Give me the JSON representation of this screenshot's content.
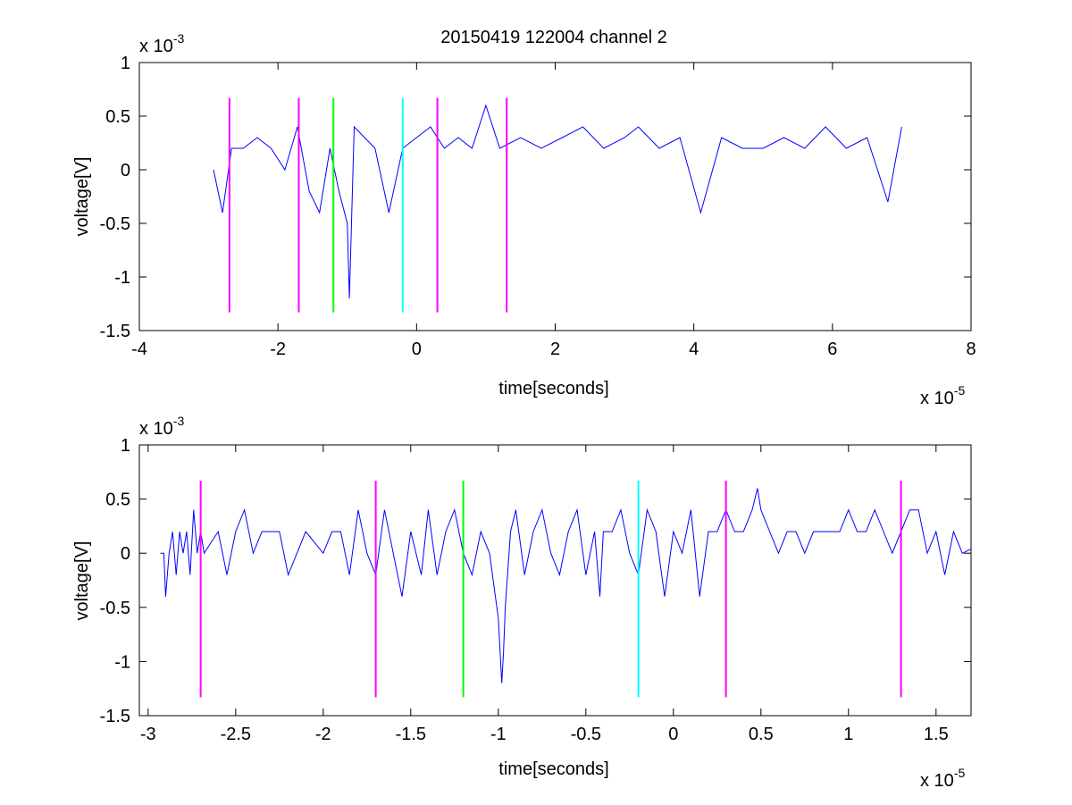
{
  "figure_title": "20150419 122004 channel 2",
  "chart_data": [
    {
      "type": "line",
      "title": "20150419 122004 channel 2",
      "xlabel": "time[seconds]",
      "ylabel": "voltage[V]",
      "x_exponent_label": "x 10",
      "x_exponent_power": "-5",
      "y_exponent_label": "x 10",
      "y_exponent_power": "-3",
      "xlim": [
        -4,
        8
      ],
      "ylim": [
        -1.5,
        1
      ],
      "x_ticks": [
        -4,
        -2,
        0,
        2,
        4,
        6,
        8
      ],
      "x_tick_labels": [
        "-4",
        "-2",
        "0",
        "2",
        "4",
        "6",
        "8"
      ],
      "y_ticks": [
        -1.5,
        -1,
        -0.5,
        0,
        0.5,
        1
      ],
      "y_tick_labels": [
        "-1.5",
        "-1",
        "-0.5",
        "0",
        "0.5",
        "1"
      ],
      "grid": false,
      "series": [
        {
          "color": "#0000ff",
          "x_start": -2.93,
          "x_end": 7.0,
          "x": [
            -2.93,
            -2.8,
            -2.67,
            -2.5,
            -2.3,
            -2.1,
            -1.9,
            -1.72,
            -1.55,
            -1.4,
            -1.25,
            -1.12,
            -1.0,
            -0.97,
            -0.9,
            -0.75,
            -0.6,
            -0.4,
            -0.2,
            0.0,
            0.2,
            0.4,
            0.6,
            0.8,
            1.0,
            1.2,
            1.5,
            1.8,
            2.1,
            2.4,
            2.7,
            3.0,
            3.2,
            3.5,
            3.8,
            4.1,
            4.4,
            4.7,
            5.0,
            5.3,
            5.6,
            5.9,
            6.2,
            6.5,
            6.8,
            7.0
          ],
          "y": [
            0,
            -0.4,
            0.2,
            0.2,
            0.3,
            0.2,
            0,
            0.4,
            -0.2,
            -0.4,
            0.2,
            -0.2,
            -0.5,
            -1.2,
            0.4,
            0.3,
            0.2,
            -0.4,
            0.2,
            0.3,
            0.4,
            0.2,
            0.3,
            0.2,
            0.6,
            0.2,
            0.3,
            0.2,
            0.3,
            0.4,
            0.2,
            0.3,
            0.4,
            0.2,
            0.3,
            -0.4,
            0.3,
            0.2,
            0.2,
            0.3,
            0.2,
            0.4,
            0.2,
            0.3,
            -0.3,
            0.4
          ]
        }
      ],
      "markers": [
        {
          "x": -2.7,
          "color": "#ff00ff"
        },
        {
          "x": -1.7,
          "color": "#ff00ff"
        },
        {
          "x": -1.2,
          "color": "#00ff00"
        },
        {
          "x": -0.2,
          "color": "#00ffff"
        },
        {
          "x": 0.3,
          "color": "#ff00ff"
        },
        {
          "x": 1.3,
          "color": "#ff00ff"
        }
      ],
      "marker_y_range": [
        -1.33,
        0.67
      ]
    },
    {
      "type": "line",
      "xlabel": "time[seconds]",
      "ylabel": "voltage[V]",
      "x_exponent_label": "x 10",
      "x_exponent_power": "-5",
      "y_exponent_label": "x 10",
      "y_exponent_power": "-3",
      "xlim": [
        -3.05,
        1.7
      ],
      "ylim": [
        -1.5,
        1
      ],
      "x_ticks": [
        -3,
        -2.5,
        -2,
        -1.5,
        -1,
        -0.5,
        0,
        0.5,
        1,
        1.5
      ],
      "x_tick_labels": [
        "-3",
        "-2.5",
        "-2",
        "-1.5",
        "-1",
        "-0.5",
        "0",
        "0.5",
        "1",
        "1.5"
      ],
      "y_ticks": [
        -1.5,
        -1,
        -0.5,
        0,
        0.5,
        1
      ],
      "y_tick_labels": [
        "-1.5",
        "-1",
        "-0.5",
        "0",
        "0.5",
        "1"
      ],
      "grid": false,
      "series": [
        {
          "color": "#0000ff",
          "x": [
            -2.93,
            -2.91,
            -2.9,
            -2.88,
            -2.86,
            -2.84,
            -2.82,
            -2.8,
            -2.78,
            -2.76,
            -2.74,
            -2.72,
            -2.7,
            -2.68,
            -2.6,
            -2.55,
            -2.5,
            -2.45,
            -2.4,
            -2.35,
            -2.25,
            -2.2,
            -2.1,
            -2.0,
            -1.95,
            -1.9,
            -1.85,
            -1.8,
            -1.75,
            -1.7,
            -1.65,
            -1.6,
            -1.55,
            -1.5,
            -1.47,
            -1.44,
            -1.4,
            -1.35,
            -1.3,
            -1.25,
            -1.2,
            -1.15,
            -1.1,
            -1.05,
            -1.0,
            -0.98,
            -0.97,
            -0.96,
            -0.93,
            -0.9,
            -0.85,
            -0.8,
            -0.75,
            -0.7,
            -0.65,
            -0.6,
            -0.55,
            -0.5,
            -0.45,
            -0.42,
            -0.4,
            -0.35,
            -0.3,
            -0.25,
            -0.2,
            -0.15,
            -0.1,
            -0.05,
            0.0,
            0.05,
            0.1,
            0.15,
            0.2,
            0.25,
            0.3,
            0.35,
            0.4,
            0.45,
            0.48,
            0.5,
            0.55,
            0.6,
            0.65,
            0.7,
            0.75,
            0.8,
            0.85,
            0.9,
            0.95,
            1.0,
            1.05,
            1.1,
            1.15,
            1.2,
            1.25,
            1.3,
            1.35,
            1.4,
            1.45,
            1.5,
            1.55,
            1.6,
            1.65,
            1.7
          ],
          "y": [
            0,
            0,
            -0.4,
            0,
            0.2,
            -0.2,
            0.2,
            0,
            0.2,
            -0.2,
            0.4,
            0,
            0.2,
            0,
            0.2,
            -0.2,
            0.2,
            0.4,
            0,
            0.2,
            0.2,
            -0.2,
            0.2,
            0,
            0.2,
            0.2,
            -0.2,
            0.4,
            0,
            -0.2,
            0.4,
            0,
            -0.4,
            0.2,
            0,
            -0.2,
            0.4,
            -0.2,
            0.2,
            0.4,
            0,
            -0.2,
            0.2,
            0,
            -0.6,
            -1.2,
            -0.9,
            -0.5,
            0.2,
            0.4,
            -0.2,
            0.2,
            0.4,
            0,
            -0.2,
            0.2,
            0.4,
            -0.2,
            0.2,
            -0.4,
            0.2,
            0.2,
            0.4,
            0,
            -0.2,
            0.4,
            0.2,
            -0.4,
            0.2,
            0,
            0.4,
            -0.4,
            0.2,
            0.2,
            0.4,
            0.2,
            0.2,
            0.4,
            0.6,
            0.4,
            0.2,
            0,
            0.2,
            0.2,
            0,
            0.2,
            0.2,
            0.2,
            0.2,
            0.4,
            0.2,
            0.2,
            0.4,
            0.2,
            0,
            0.2,
            0.4,
            0.4,
            0,
            0.2,
            -0.2,
            0.2,
            0,
            0.04
          ]
        }
      ],
      "markers": [
        {
          "x": -2.7,
          "color": "#ff00ff"
        },
        {
          "x": -1.7,
          "color": "#ff00ff"
        },
        {
          "x": -1.2,
          "color": "#00ff00"
        },
        {
          "x": -0.2,
          "color": "#00ffff"
        },
        {
          "x": 0.3,
          "color": "#ff00ff"
        },
        {
          "x": 1.3,
          "color": "#ff00ff"
        }
      ],
      "marker_y_range": [
        -1.33,
        0.67
      ]
    }
  ]
}
